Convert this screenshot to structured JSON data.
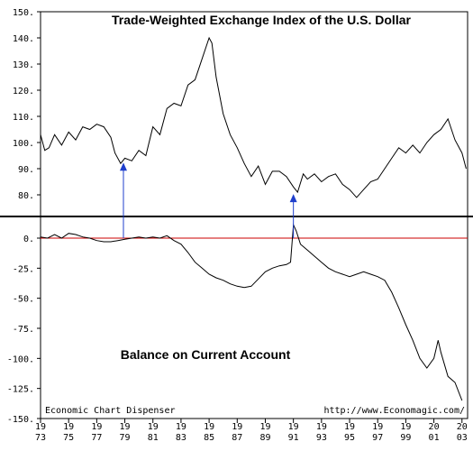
{
  "chart_data": [
    {
      "type": "line",
      "title": "Trade-Weighted Exchange Index of the U.S. Dollar",
      "ylim": [
        75,
        150
      ],
      "yticks": [
        "150.",
        "140.",
        "130.",
        "120.",
        "110.",
        "100.",
        "90.",
        "80."
      ],
      "ytick_values": [
        150,
        140,
        130,
        120,
        110,
        100,
        90,
        80
      ],
      "series": [
        {
          "x": [
            1973.0,
            1973.3,
            1973.6,
            1974.0,
            1974.5,
            1975.0,
            1975.5,
            1976.0,
            1976.5,
            1977.0,
            1977.5,
            1978.0,
            1978.3,
            1978.7,
            1979.0,
            1979.5,
            1980.0,
            1980.5,
            1981.0,
            1981.5,
            1982.0,
            1982.5,
            1983.0,
            1983.5,
            1984.0,
            1984.5,
            1985.0,
            1985.2,
            1985.5,
            1986.0,
            1986.5,
            1987.0,
            1987.5,
            1988.0,
            1988.5,
            1989.0,
            1989.5,
            1990.0,
            1990.5,
            1991.0,
            1991.3,
            1991.7,
            1992.0,
            1992.5,
            1993.0,
            1993.5,
            1994.0,
            1994.5,
            1995.0,
            1995.5,
            1996.0,
            1996.5,
            1997.0,
            1997.5,
            1998.0,
            1998.5,
            1999.0,
            1999.5,
            2000.0,
            2000.5,
            2001.0,
            2001.5,
            2002.0,
            2002.5,
            2003.0,
            2003.3
          ],
          "values": [
            103,
            97,
            98,
            103,
            99,
            104,
            101,
            106,
            105,
            107,
            106,
            102,
            96,
            92,
            94,
            93,
            97,
            95,
            106,
            103,
            113,
            115,
            114,
            122,
            124,
            132,
            140,
            138,
            125,
            111,
            103,
            98,
            92,
            87,
            91,
            84,
            89,
            89,
            87,
            83,
            81,
            88,
            86,
            88,
            85,
            87,
            88,
            84,
            82,
            79,
            82,
            85,
            86,
            90,
            94,
            98,
            96,
            99,
            96,
            100,
            103,
            105,
            109,
            101,
            96,
            90
          ]
        }
      ],
      "markers": [
        {
          "x": 1978.9,
          "y": 93
        },
        {
          "x": 1991.0,
          "y": 81
        }
      ]
    },
    {
      "type": "line",
      "title": "Balance on Current Account",
      "ylim": [
        -150,
        12
      ],
      "yticks": [
        "0.",
        "-25.",
        "-50.",
        "-75.",
        "-100.",
        "-125.",
        "-150."
      ],
      "ytick_values": [
        0,
        -25,
        -50,
        -75,
        -100,
        -125,
        -150
      ],
      "categories": [
        "19\n73",
        "19\n75",
        "19\n77",
        "19\n79",
        "19\n81",
        "19\n83",
        "19\n85",
        "19\n87",
        "19\n89",
        "19\n91",
        "19\n93",
        "19\n95",
        "19\n97",
        "19\n99",
        "20\n01",
        "20\n03"
      ],
      "category_years": [
        1973,
        1975,
        1977,
        1979,
        1981,
        1983,
        1985,
        1987,
        1989,
        1991,
        1993,
        1995,
        1997,
        1999,
        2001,
        2003
      ],
      "series": [
        {
          "x": [
            1973.0,
            1973.5,
            1974.0,
            1974.5,
            1975.0,
            1975.5,
            1976.0,
            1976.5,
            1977.0,
            1977.5,
            1978.0,
            1978.5,
            1979.0,
            1979.5,
            1980.0,
            1980.5,
            1981.0,
            1981.5,
            1982.0,
            1982.5,
            1983.0,
            1983.5,
            1984.0,
            1984.5,
            1985.0,
            1985.5,
            1986.0,
            1986.5,
            1987.0,
            1987.5,
            1988.0,
            1988.5,
            1989.0,
            1989.5,
            1990.0,
            1990.5,
            1990.8,
            1991.0,
            1991.2,
            1991.5,
            1992.0,
            1992.5,
            1993.0,
            1993.5,
            1994.0,
            1994.5,
            1995.0,
            1995.5,
            1996.0,
            1996.5,
            1997.0,
            1997.5,
            1998.0,
            1998.5,
            1999.0,
            1999.5,
            2000.0,
            2000.5,
            2001.0,
            2001.3,
            2001.5,
            2002.0,
            2002.5,
            2003.0
          ],
          "values": [
            1,
            0,
            3,
            0,
            4,
            3,
            1,
            0,
            -2,
            -3,
            -3,
            -2,
            -1,
            0,
            1,
            0,
            1,
            0,
            2,
            -2,
            -5,
            -12,
            -20,
            -25,
            -30,
            -33,
            -35,
            -38,
            -40,
            -41,
            -40,
            -34,
            -28,
            -25,
            -23,
            -22,
            -20,
            11,
            6,
            -5,
            -10,
            -15,
            -20,
            -25,
            -28,
            -30,
            -32,
            -30,
            -28,
            -30,
            -32,
            -35,
            -45,
            -58,
            -72,
            -85,
            -100,
            -108,
            -100,
            -85,
            -95,
            -115,
            -120,
            -135
          ]
        }
      ],
      "reference_line": {
        "y": 0,
        "color": "#cc0000"
      }
    }
  ],
  "notes": {
    "left": "Economic Chart Dispenser",
    "right": "http://www.Economagic.com/"
  },
  "colors": {
    "line": "#000000",
    "zero_line": "#cc0000",
    "arrow": "#1f3fcc",
    "frame": "#000000",
    "background": "#ffffff"
  }
}
